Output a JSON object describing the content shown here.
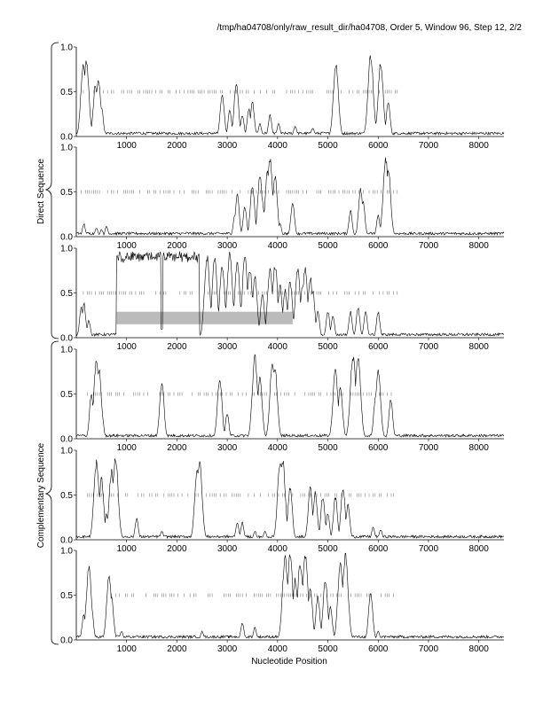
{
  "title": "/tmp/ha04708/only/raw_result_dir/ha04708, Order 5, Window 96, Step 12, 2/2",
  "axis_labels": {
    "x": "Nucleotide Position",
    "direct": "Direct Sequence",
    "complementary": "Complementary Sequence"
  },
  "colors": {
    "line": "#000000",
    "highlight": "#bbbbbb",
    "axis": "#000000"
  },
  "chart_data": [
    {
      "type": "line",
      "panel": 1,
      "group": "Direct Sequence",
      "xlim": [
        0,
        8500
      ],
      "ylim": [
        0,
        1.0
      ],
      "xticks": [
        1000,
        2000,
        3000,
        4000,
        5000,
        6000,
        7000,
        8000
      ],
      "yticks": [
        "0.0",
        "0.5",
        "1.0"
      ],
      "dash_range": [
        100,
        6400
      ],
      "peaks": [
        [
          140,
          0.85
        ],
        [
          200,
          0.88
        ],
        [
          380,
          0.6
        ],
        [
          440,
          0.65
        ],
        [
          500,
          0.35
        ],
        [
          1250,
          0.05
        ],
        [
          1700,
          0.03
        ],
        [
          2900,
          0.5
        ],
        [
          3050,
          0.3
        ],
        [
          3180,
          0.62
        ],
        [
          3300,
          0.25
        ],
        [
          3430,
          0.32
        ],
        [
          3500,
          0.4
        ],
        [
          3650,
          0.15
        ],
        [
          3850,
          0.25
        ],
        [
          4020,
          0.15
        ],
        [
          4350,
          0.12
        ],
        [
          4700,
          0.1
        ],
        [
          4900,
          0.05
        ],
        [
          5160,
          0.85
        ],
        [
          5850,
          0.95
        ],
        [
          6050,
          0.85
        ],
        [
          6200,
          0.4
        ]
      ]
    },
    {
      "type": "line",
      "panel": 2,
      "group": "Direct Sequence",
      "xlim": [
        0,
        8500
      ],
      "ylim": [
        0,
        1.0
      ],
      "xticks": [
        1000,
        2000,
        3000,
        4000,
        5000,
        6000,
        7000,
        8000
      ],
      "yticks": [
        "0.0",
        "0.5",
        "1.0"
      ],
      "dash_range": [
        100,
        6400
      ],
      "peaks": [
        [
          150,
          0.15
        ],
        [
          400,
          0.1
        ],
        [
          500,
          0.08
        ],
        [
          600,
          0.12
        ],
        [
          2200,
          0.05
        ],
        [
          3150,
          0.25
        ],
        [
          3200,
          0.48
        ],
        [
          3350,
          0.35
        ],
        [
          3500,
          0.6
        ],
        [
          3650,
          0.7
        ],
        [
          3700,
          0.4
        ],
        [
          3800,
          0.75
        ],
        [
          3850,
          0.9
        ],
        [
          3950,
          0.7
        ],
        [
          4050,
          0.15
        ],
        [
          4300,
          0.4
        ],
        [
          5450,
          0.3
        ],
        [
          5650,
          0.55
        ],
        [
          5700,
          0.4
        ],
        [
          6000,
          0.25
        ],
        [
          6150,
          0.9
        ],
        [
          6200,
          0.8
        ]
      ]
    },
    {
      "type": "line",
      "panel": 3,
      "group": "Direct Sequence",
      "xlim": [
        0,
        8500
      ],
      "ylim": [
        0,
        1.0
      ],
      "xticks": [
        1000,
        2000,
        3000,
        4000,
        5000,
        6000,
        7000,
        8000
      ],
      "yticks": [
        "0.0",
        "0.5",
        "1.0"
      ],
      "dash_range": [
        100,
        6400
      ],
      "highlight_range": [
        800,
        4300
      ],
      "highlight_y": [
        0.15,
        0.29
      ],
      "plateau": [
        800,
        2450
      ],
      "plateau_value": 0.97,
      "peaks": [
        [
          100,
          0.35
        ],
        [
          150,
          0.4
        ],
        [
          250,
          0.2
        ],
        [
          2600,
          0.95
        ],
        [
          2750,
          0.9
        ],
        [
          2900,
          0.85
        ],
        [
          3050,
          0.97
        ],
        [
          3200,
          0.9
        ],
        [
          3350,
          0.95
        ],
        [
          3450,
          0.8
        ],
        [
          3550,
          0.7
        ],
        [
          3700,
          0.5
        ],
        [
          3850,
          0.82
        ],
        [
          3950,
          0.85
        ],
        [
          4050,
          0.6
        ],
        [
          4150,
          0.55
        ],
        [
          4250,
          0.65
        ],
        [
          4400,
          0.8
        ],
        [
          4500,
          0.62
        ],
        [
          4550,
          0.8
        ],
        [
          4650,
          0.7
        ],
        [
          4700,
          0.55
        ],
        [
          4800,
          0.3
        ],
        [
          5000,
          0.3
        ],
        [
          5100,
          0.25
        ],
        [
          5450,
          0.3
        ],
        [
          5600,
          0.35
        ],
        [
          5750,
          0.3
        ],
        [
          6000,
          0.3
        ]
      ]
    },
    {
      "type": "line",
      "panel": 4,
      "group": "Complementary Sequence",
      "xlim": [
        0,
        8500
      ],
      "ylim": [
        0,
        1.0
      ],
      "xticks": [
        1000,
        2000,
        3000,
        4000,
        5000,
        6000,
        7000,
        8000
      ],
      "yticks": [
        "0.0",
        "0.5",
        "1.0"
      ],
      "dash_range": [
        100,
        6400
      ],
      "peaks": [
        [
          300,
          0.5
        ],
        [
          400,
          0.9
        ],
        [
          450,
          0.8
        ],
        [
          500,
          0.35
        ],
        [
          1700,
          0.65
        ],
        [
          2850,
          0.7
        ],
        [
          3000,
          0.3
        ],
        [
          3550,
          0.95
        ],
        [
          3650,
          0.7
        ],
        [
          3900,
          0.9
        ],
        [
          3950,
          0.8
        ],
        [
          5150,
          0.8
        ],
        [
          5250,
          0.6
        ],
        [
          5500,
          0.97
        ],
        [
          5600,
          0.95
        ],
        [
          5950,
          0.5
        ],
        [
          6000,
          0.8
        ],
        [
          6250,
          0.45
        ]
      ]
    },
    {
      "type": "line",
      "panel": 5,
      "group": "Complementary Sequence",
      "xlim": [
        0,
        8500
      ],
      "ylim": [
        0,
        1.0
      ],
      "xticks": [
        1000,
        2000,
        3000,
        4000,
        5000,
        6000,
        7000,
        8000
      ],
      "yticks": [
        "0.0",
        "0.5",
        "1.0"
      ],
      "dash_range": [
        100,
        6400
      ],
      "peaks": [
        [
          400,
          0.9
        ],
        [
          500,
          0.7
        ],
        [
          600,
          0.3
        ],
        [
          700,
          0.8
        ],
        [
          780,
          0.95
        ],
        [
          1200,
          0.25
        ],
        [
          1700,
          0.1
        ],
        [
          2400,
          0.8
        ],
        [
          2450,
          0.9
        ],
        [
          3200,
          0.2
        ],
        [
          3300,
          0.2
        ],
        [
          3550,
          0.1
        ],
        [
          3750,
          0.1
        ],
        [
          4050,
          0.9
        ],
        [
          4100,
          0.93
        ],
        [
          4250,
          0.6
        ],
        [
          4650,
          0.6
        ],
        [
          4750,
          0.55
        ],
        [
          4900,
          0.5
        ],
        [
          5000,
          0.3
        ],
        [
          5150,
          0.5
        ],
        [
          5300,
          0.6
        ],
        [
          5400,
          0.4
        ],
        [
          5900,
          0.15
        ],
        [
          6050,
          0.12
        ]
      ]
    },
    {
      "type": "line",
      "panel": 6,
      "group": "Complementary Sequence",
      "xlim": [
        0,
        8500
      ],
      "ylim": [
        0,
        1.0
      ],
      "xticks": [
        1000,
        2000,
        3000,
        4000,
        5000,
        6000,
        7000,
        8000
      ],
      "yticks": [
        "0.0",
        "0.5",
        "1.0"
      ],
      "dash_range": [
        700,
        6300
      ],
      "peaks": [
        [
          150,
          0.3
        ],
        [
          250,
          0.85
        ],
        [
          300,
          0.4
        ],
        [
          650,
          0.75
        ],
        [
          700,
          0.5
        ],
        [
          900,
          0.1
        ],
        [
          1200,
          0.05
        ],
        [
          2500,
          0.1
        ],
        [
          3300,
          0.2
        ],
        [
          3550,
          0.15
        ],
        [
          4150,
          0.95
        ],
        [
          4250,
          0.98
        ],
        [
          4350,
          0.7
        ],
        [
          4450,
          0.9
        ],
        [
          4550,
          0.97
        ],
        [
          4650,
          0.6
        ],
        [
          4800,
          0.5
        ],
        [
          4950,
          0.7
        ],
        [
          5050,
          0.4
        ],
        [
          5250,
          0.9
        ],
        [
          5350,
          0.98
        ],
        [
          5850,
          0.55
        ],
        [
          6000,
          0.1
        ]
      ]
    }
  ]
}
